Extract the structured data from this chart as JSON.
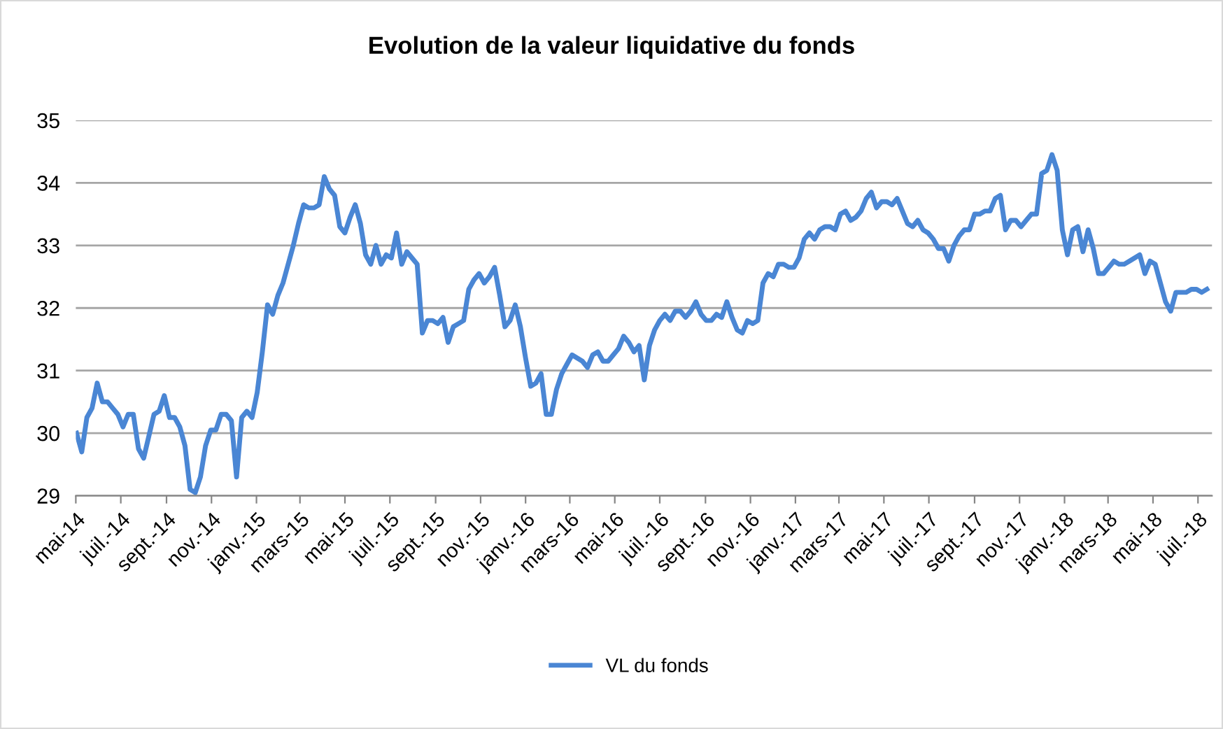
{
  "chart_data": {
    "type": "line",
    "title": "Evolution de la valeur liquidative du fonds",
    "x": [
      "2014-05-02",
      "2014-05-09",
      "2014-05-16",
      "2014-05-23",
      "2014-05-30",
      "2014-06-06",
      "2014-06-13",
      "2014-06-20",
      "2014-06-27",
      "2014-07-04",
      "2014-07-11",
      "2014-07-18",
      "2014-07-25",
      "2014-08-01",
      "2014-08-08",
      "2014-08-15",
      "2014-08-22",
      "2014-08-29",
      "2014-09-05",
      "2014-09-12",
      "2014-09-19",
      "2014-09-26",
      "2014-10-03",
      "2014-10-10",
      "2014-10-17",
      "2014-10-24",
      "2014-10-31",
      "2014-11-07",
      "2014-11-14",
      "2014-11-21",
      "2014-11-28",
      "2014-12-05",
      "2014-12-12",
      "2014-12-19",
      "2014-12-26",
      "2015-01-02",
      "2015-01-09",
      "2015-01-16",
      "2015-01-23",
      "2015-01-30",
      "2015-02-06",
      "2015-02-13",
      "2015-02-20",
      "2015-02-27",
      "2015-03-06",
      "2015-03-13",
      "2015-03-20",
      "2015-03-27",
      "2015-04-03",
      "2015-04-10",
      "2015-04-17",
      "2015-04-24",
      "2015-05-01",
      "2015-05-08",
      "2015-05-15",
      "2015-05-22",
      "2015-05-29",
      "2015-06-05",
      "2015-06-12",
      "2015-06-19",
      "2015-06-26",
      "2015-07-03",
      "2015-07-10",
      "2015-07-17",
      "2015-07-24",
      "2015-07-31",
      "2015-08-07",
      "2015-08-14",
      "2015-08-21",
      "2015-08-28",
      "2015-09-04",
      "2015-09-11",
      "2015-09-18",
      "2015-09-25",
      "2015-10-02",
      "2015-10-09",
      "2015-10-16",
      "2015-10-23",
      "2015-10-30",
      "2015-11-06",
      "2015-11-13",
      "2015-11-20",
      "2015-11-27",
      "2015-12-04",
      "2015-12-11",
      "2015-12-18",
      "2015-12-25",
      "2016-01-01",
      "2016-01-08",
      "2016-01-15",
      "2016-01-22",
      "2016-01-29",
      "2016-02-05",
      "2016-02-12",
      "2016-02-19",
      "2016-02-26",
      "2016-03-04",
      "2016-03-11",
      "2016-03-18",
      "2016-03-25",
      "2016-04-01",
      "2016-04-08",
      "2016-04-15",
      "2016-04-22",
      "2016-04-29",
      "2016-05-06",
      "2016-05-13",
      "2016-05-20",
      "2016-05-27",
      "2016-06-03",
      "2016-06-10",
      "2016-06-17",
      "2016-06-24",
      "2016-07-01",
      "2016-07-08",
      "2016-07-15",
      "2016-07-22",
      "2016-07-29",
      "2016-08-05",
      "2016-08-12",
      "2016-08-19",
      "2016-08-26",
      "2016-09-02",
      "2016-09-09",
      "2016-09-16",
      "2016-09-23",
      "2016-09-30",
      "2016-10-07",
      "2016-10-14",
      "2016-10-21",
      "2016-10-28",
      "2016-11-04",
      "2016-11-11",
      "2016-11-18",
      "2016-11-25",
      "2016-12-02",
      "2016-12-09",
      "2016-12-16",
      "2016-12-23",
      "2016-12-30",
      "2017-01-06",
      "2017-01-13",
      "2017-01-20",
      "2017-01-27",
      "2017-02-03",
      "2017-02-10",
      "2017-02-17",
      "2017-02-24",
      "2017-03-03",
      "2017-03-10",
      "2017-03-17",
      "2017-03-24",
      "2017-03-31",
      "2017-04-07",
      "2017-04-14",
      "2017-04-21",
      "2017-04-28",
      "2017-05-05",
      "2017-05-12",
      "2017-05-19",
      "2017-05-26",
      "2017-06-02",
      "2017-06-09",
      "2017-06-16",
      "2017-06-23",
      "2017-06-30",
      "2017-07-07",
      "2017-07-14",
      "2017-07-21",
      "2017-07-28",
      "2017-08-04",
      "2017-08-11",
      "2017-08-18",
      "2017-08-25",
      "2017-09-01",
      "2017-09-08",
      "2017-09-15",
      "2017-09-22",
      "2017-09-29",
      "2017-10-06",
      "2017-10-13",
      "2017-10-20",
      "2017-10-27",
      "2017-11-03",
      "2017-11-10",
      "2017-11-17",
      "2017-11-24",
      "2017-12-01",
      "2017-12-08",
      "2017-12-15",
      "2017-12-22",
      "2017-12-29",
      "2018-01-05",
      "2018-01-12",
      "2018-01-19",
      "2018-01-26",
      "2018-02-02",
      "2018-02-09",
      "2018-02-16",
      "2018-02-23",
      "2018-03-02",
      "2018-03-09",
      "2018-03-16",
      "2018-03-23",
      "2018-03-30",
      "2018-04-06",
      "2018-04-13",
      "2018-04-20",
      "2018-04-27",
      "2018-05-04",
      "2018-05-11",
      "2018-05-18",
      "2018-05-25",
      "2018-06-01",
      "2018-06-08",
      "2018-06-15",
      "2018-06-22",
      "2018-06-29",
      "2018-07-06",
      "2018-07-13"
    ],
    "series": [
      {
        "name": "VL du fonds",
        "color": "#4a86d4",
        "values": [
          30.0,
          29.7,
          30.25,
          30.4,
          30.8,
          30.5,
          30.5,
          30.4,
          30.3,
          30.1,
          30.3,
          30.3,
          29.75,
          29.6,
          29.95,
          30.3,
          30.35,
          30.6,
          30.25,
          30.25,
          30.1,
          29.8,
          29.1,
          29.05,
          29.3,
          29.8,
          30.05,
          30.05,
          30.3,
          30.3,
          30.2,
          29.3,
          30.25,
          30.35,
          30.25,
          30.65,
          31.3,
          32.05,
          31.9,
          32.2,
          32.4,
          32.7,
          33.0,
          33.35,
          33.65,
          33.6,
          33.6,
          33.65,
          34.1,
          33.9,
          33.8,
          33.3,
          33.2,
          33.45,
          33.65,
          33.35,
          32.85,
          32.7,
          33.0,
          32.7,
          32.85,
          32.8,
          33.2,
          32.7,
          32.9,
          32.8,
          32.7,
          31.6,
          31.8,
          31.8,
          31.75,
          31.85,
          31.45,
          31.7,
          31.75,
          31.8,
          32.3,
          32.45,
          32.55,
          32.4,
          32.5,
          32.65,
          32.2,
          31.7,
          31.8,
          32.05,
          31.7,
          31.2,
          30.75,
          30.8,
          30.95,
          30.3,
          30.3,
          30.7,
          30.95,
          31.1,
          31.25,
          31.2,
          31.15,
          31.05,
          31.25,
          31.3,
          31.15,
          31.15,
          31.25,
          31.35,
          31.55,
          31.45,
          31.3,
          31.4,
          30.85,
          31.4,
          31.65,
          31.8,
          31.9,
          31.8,
          31.95,
          31.95,
          31.85,
          31.95,
          32.1,
          31.9,
          31.8,
          31.8,
          31.9,
          31.85,
          32.1,
          31.85,
          31.65,
          31.6,
          31.8,
          31.75,
          31.8,
          32.4,
          32.55,
          32.5,
          32.7,
          32.7,
          32.65,
          32.65,
          32.8,
          33.1,
          33.2,
          33.1,
          33.25,
          33.3,
          33.3,
          33.25,
          33.5,
          33.55,
          33.4,
          33.45,
          33.55,
          33.75,
          33.85,
          33.6,
          33.7,
          33.7,
          33.65,
          33.75,
          33.55,
          33.35,
          33.3,
          33.4,
          33.25,
          33.2,
          33.1,
          32.95,
          32.95,
          32.75,
          33.0,
          33.15,
          33.25,
          33.25,
          33.5,
          33.5,
          33.55,
          33.55,
          33.75,
          33.8,
          33.25,
          33.4,
          33.4,
          33.3,
          33.4,
          33.5,
          33.5,
          34.15,
          34.2,
          34.45,
          34.2,
          33.25,
          32.85,
          33.25,
          33.3,
          32.9,
          33.25,
          32.95,
          32.55,
          32.55,
          32.65,
          32.75,
          32.7,
          32.7,
          32.75,
          32.8,
          32.85,
          32.55,
          32.75,
          32.7,
          32.4,
          32.1,
          31.95,
          32.25,
          32.25,
          32.25,
          32.3,
          32.3,
          32.25,
          32.3
        ]
      }
    ],
    "xlim": [
      "2014-05-01",
      "2018-07-20"
    ],
    "xticks": [
      {
        "value": "2014-05-01",
        "label": "mai-14"
      },
      {
        "value": "2014-07-01",
        "label": "juil.-14"
      },
      {
        "value": "2014-09-01",
        "label": "sept.-14"
      },
      {
        "value": "2014-11-01",
        "label": "nov.-14"
      },
      {
        "value": "2015-01-01",
        "label": "janv.-15"
      },
      {
        "value": "2015-03-01",
        "label": "mars-15"
      },
      {
        "value": "2015-05-01",
        "label": "mai-15"
      },
      {
        "value": "2015-07-01",
        "label": "juil.-15"
      },
      {
        "value": "2015-09-01",
        "label": "sept.-15"
      },
      {
        "value": "2015-11-01",
        "label": "nov.-15"
      },
      {
        "value": "2016-01-01",
        "label": "janv.-16"
      },
      {
        "value": "2016-03-01",
        "label": "mars-16"
      },
      {
        "value": "2016-05-01",
        "label": "mai-16"
      },
      {
        "value": "2016-07-01",
        "label": "juil.-16"
      },
      {
        "value": "2016-09-01",
        "label": "sept.-16"
      },
      {
        "value": "2016-11-01",
        "label": "nov.-16"
      },
      {
        "value": "2017-01-01",
        "label": "janv.-17"
      },
      {
        "value": "2017-03-01",
        "label": "mars-17"
      },
      {
        "value": "2017-05-01",
        "label": "mai-17"
      },
      {
        "value": "2017-07-01",
        "label": "juil.-17"
      },
      {
        "value": "2017-09-01",
        "label": "sept.-17"
      },
      {
        "value": "2017-11-01",
        "label": "nov.-17"
      },
      {
        "value": "2018-01-01",
        "label": "janv.-18"
      },
      {
        "value": "2018-03-01",
        "label": "mars-18"
      },
      {
        "value": "2018-05-01",
        "label": "mai-18"
      },
      {
        "value": "2018-07-01",
        "label": "juil.-18"
      }
    ],
    "ylim": [
      29,
      35
    ],
    "yticks": [
      29,
      30,
      31,
      32,
      33,
      34,
      35
    ],
    "grid": "y",
    "legend": "bottom",
    "marker": "none",
    "line_style": "solid"
  }
}
